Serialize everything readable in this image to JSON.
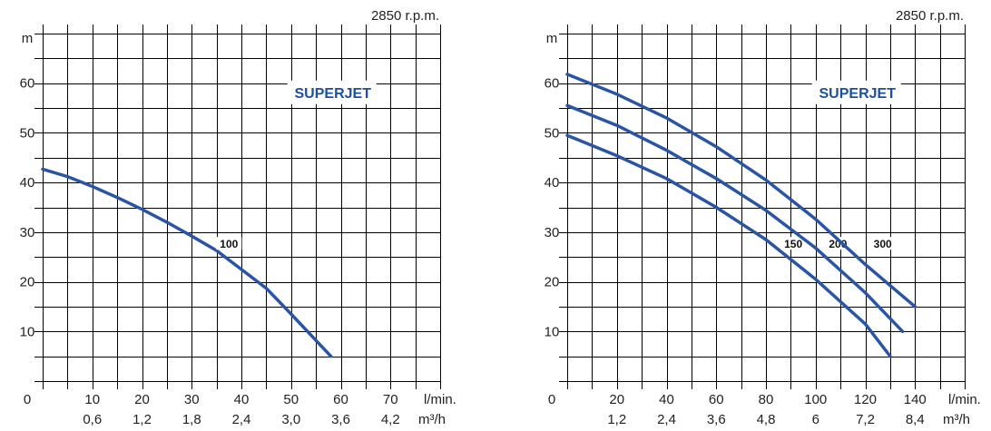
{
  "chart_data": [
    {
      "type": "line",
      "title": "SUPERJET",
      "speed_label": "2850 r.p.m.",
      "ylabel": "m",
      "xlim": [
        0,
        80
      ],
      "ylim": [
        0,
        70
      ],
      "grid": true,
      "origin_label": "0",
      "x_ticks": [
        "10",
        "20",
        "30",
        "40",
        "50",
        "60",
        "70"
      ],
      "x_ticks_m3h": [
        "0,6",
        "1,2",
        "1,8",
        "2,4",
        "3,0",
        "3,6",
        "4,2"
      ],
      "y_ticks": [
        "10",
        "20",
        "30",
        "40",
        "50",
        "60"
      ],
      "x_unit_lmin": "l/min.",
      "x_unit_m3h": "m³/h",
      "series": [
        {
          "name": "100",
          "label_at": [
            37.5,
            27.2
          ],
          "x": [
            0,
            5,
            10,
            15,
            20,
            25,
            30,
            35,
            40,
            45,
            50,
            55,
            58
          ],
          "y": [
            42.7,
            41.2,
            39.2,
            37.0,
            34.6,
            32.0,
            29.2,
            26.3,
            22.5,
            18.7,
            13.5,
            8.2,
            5.0
          ]
        }
      ]
    },
    {
      "type": "line",
      "title": "SUPERJET",
      "speed_label": "2850 r.p.m.",
      "ylabel": "m",
      "xlim": [
        0,
        160
      ],
      "ylim": [
        0,
        70
      ],
      "grid": true,
      "origin_label": "0",
      "x_ticks": [
        "20",
        "40",
        "60",
        "80",
        "100",
        "120",
        "140"
      ],
      "x_ticks_m3h": [
        "1,2",
        "2,4",
        "3,6",
        "4,8",
        "6",
        "7,2",
        "8,4"
      ],
      "y_ticks": [
        "10",
        "20",
        "30",
        "40",
        "50",
        "60"
      ],
      "x_unit_lmin": "l/min.",
      "x_unit_m3h": "m³/h",
      "series": [
        {
          "name": "150",
          "label_at": [
            91,
            27.2
          ],
          "x": [
            0,
            20,
            40,
            60,
            80,
            100,
            120,
            130
          ],
          "y": [
            49.5,
            45.4,
            40.8,
            35.0,
            28.5,
            20.5,
            11.5,
            5.0
          ]
        },
        {
          "name": "200",
          "label_at": [
            109,
            27.2
          ],
          "x": [
            0,
            20,
            40,
            60,
            80,
            100,
            120,
            135
          ],
          "y": [
            55.5,
            51.5,
            46.5,
            40.8,
            34.4,
            26.8,
            17.8,
            10.0
          ]
        },
        {
          "name": "300",
          "label_at": [
            127,
            27.2
          ],
          "x": [
            0,
            20,
            40,
            60,
            80,
            100,
            120,
            140
          ],
          "y": [
            61.8,
            57.8,
            53.0,
            47.2,
            40.5,
            32.6,
            23.5,
            15.0
          ]
        }
      ]
    }
  ]
}
